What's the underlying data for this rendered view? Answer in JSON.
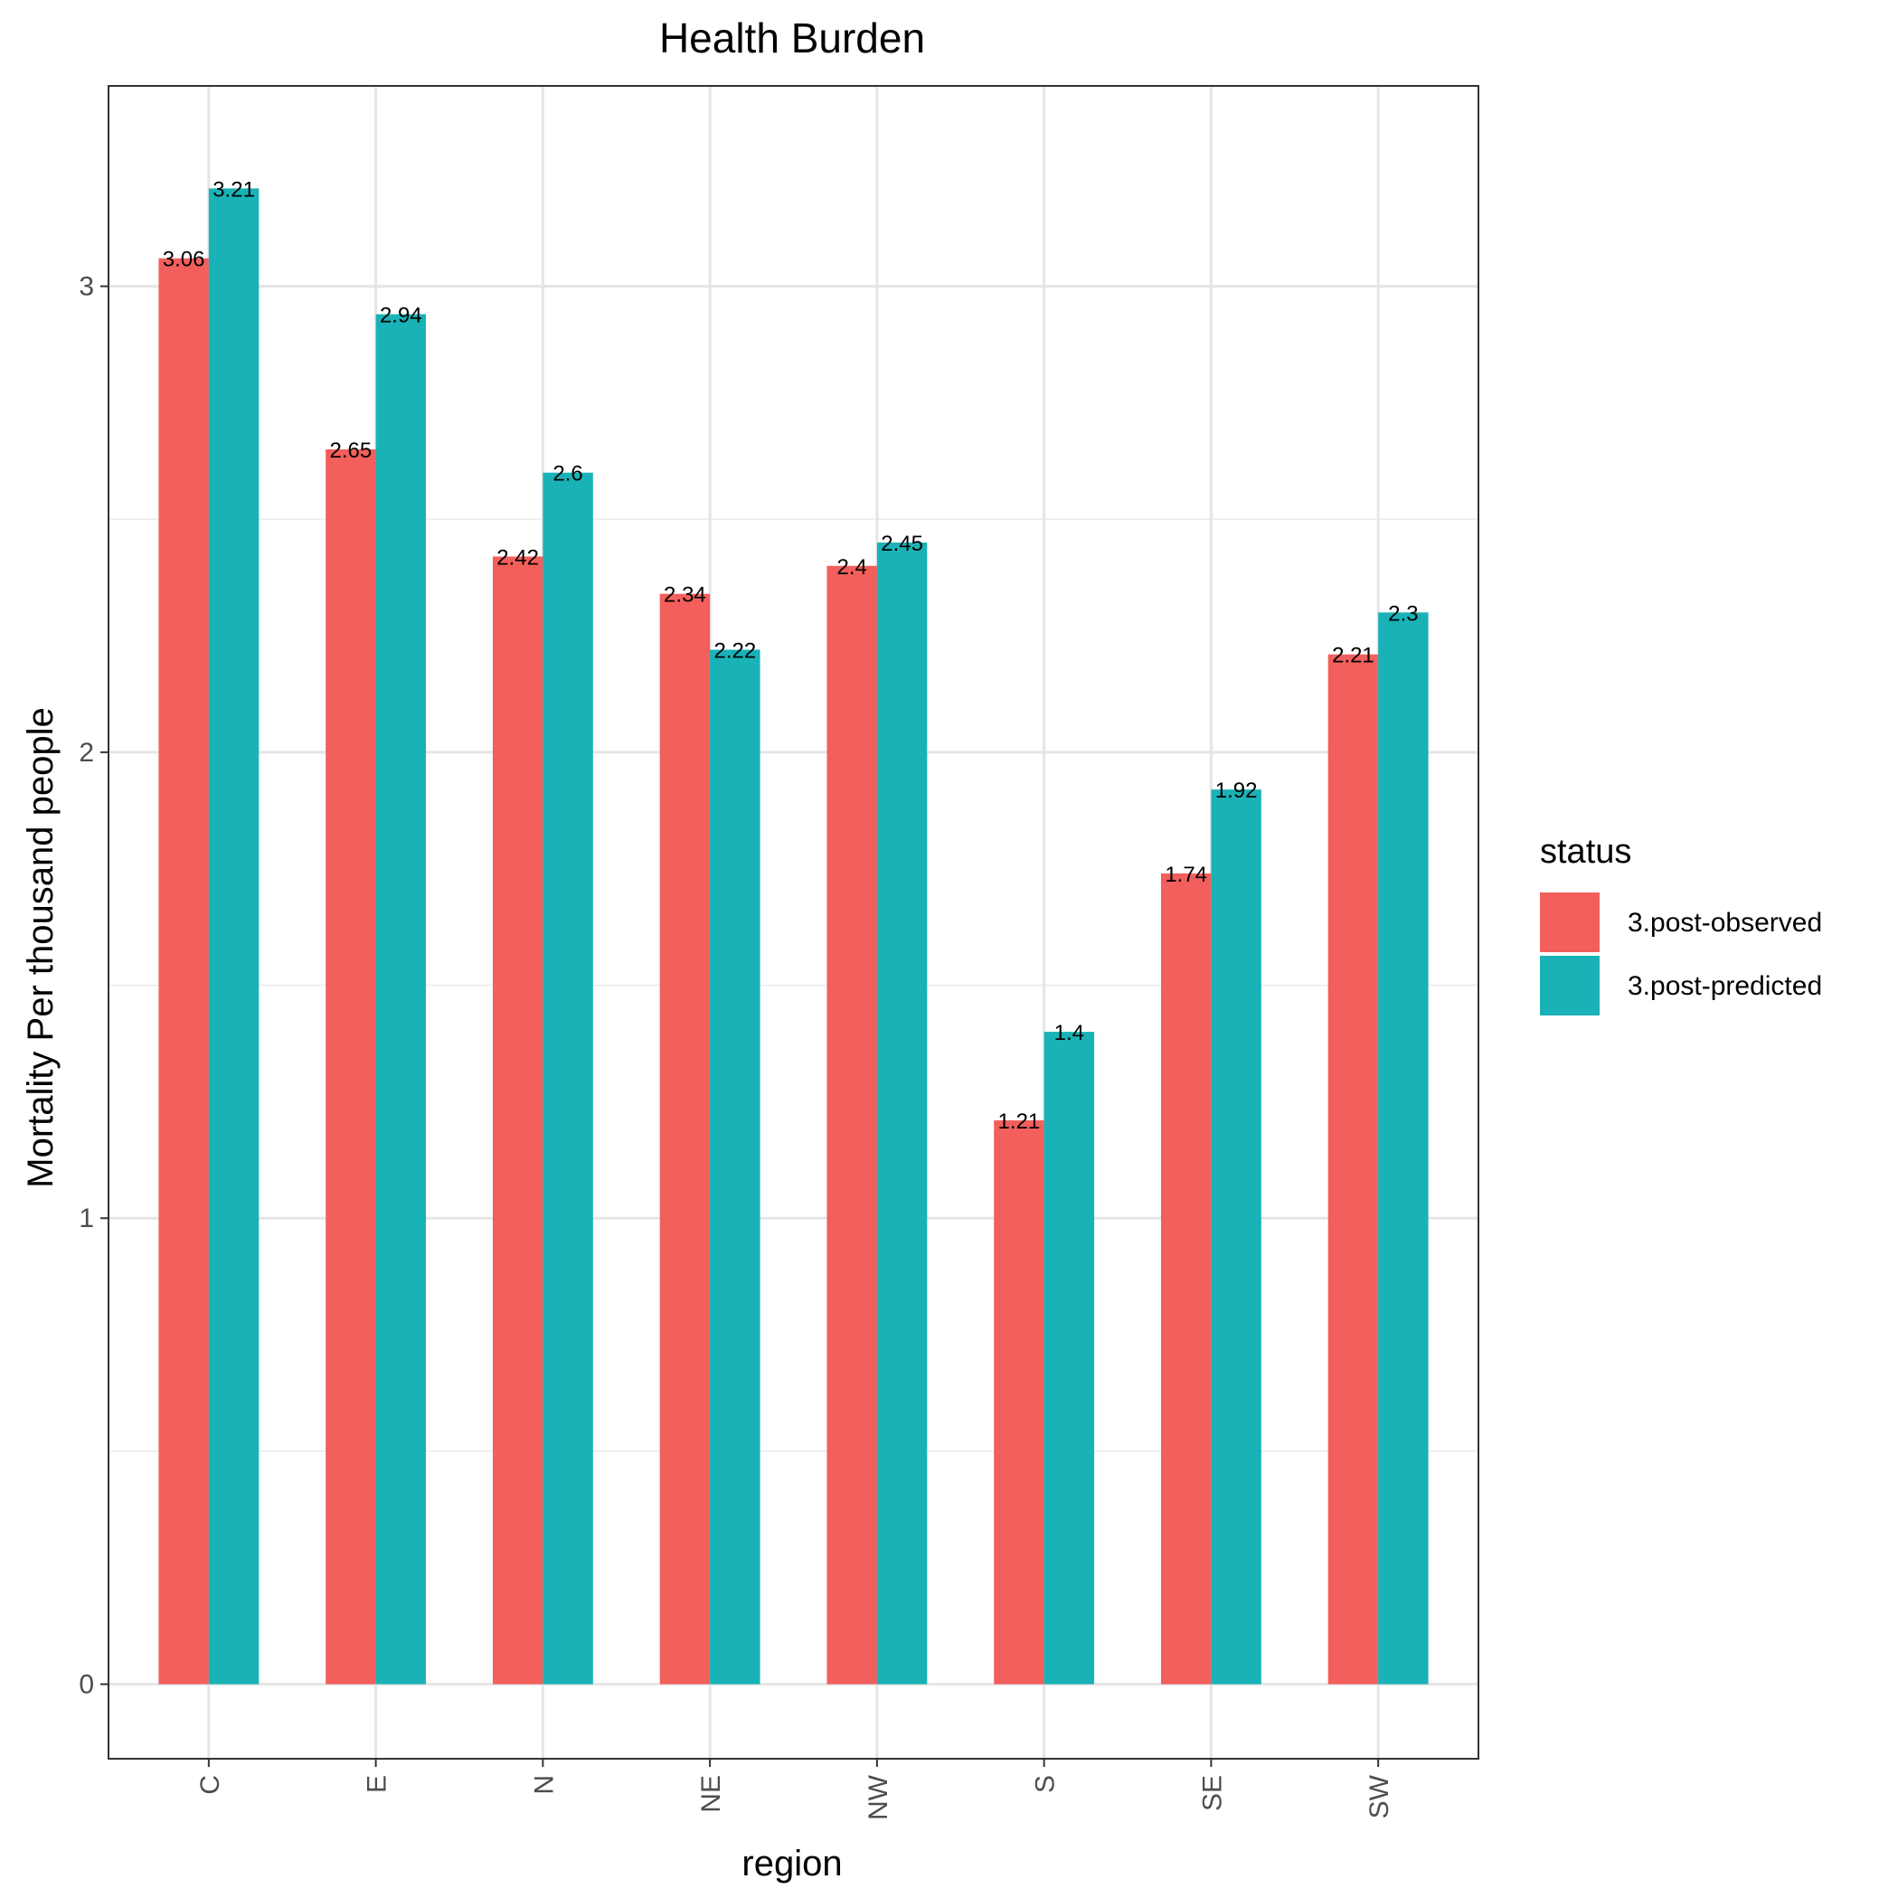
{
  "chart_data": {
    "type": "bar",
    "title": "Health Burden",
    "xlabel": "region",
    "ylabel": "Mortality Per thousand people",
    "categories": [
      "C",
      "E",
      "N",
      "NE",
      "NW",
      "S",
      "SE",
      "SW"
    ],
    "series": [
      {
        "name": "3.post-observed",
        "color": "#F25F5C",
        "values": [
          3.06,
          2.65,
          2.42,
          2.34,
          2.4,
          1.21,
          1.74,
          2.21
        ]
      },
      {
        "name": "3.post-predicted",
        "color": "#19B2B6",
        "values": [
          3.21,
          2.94,
          2.6,
          2.22,
          2.45,
          1.4,
          1.92,
          2.3
        ]
      }
    ],
    "yticks": [
      0,
      1,
      2,
      3
    ],
    "ylim": [
      -0.16,
      3.43
    ],
    "grid": true,
    "legend": {
      "title": "status",
      "placement": "right"
    }
  }
}
